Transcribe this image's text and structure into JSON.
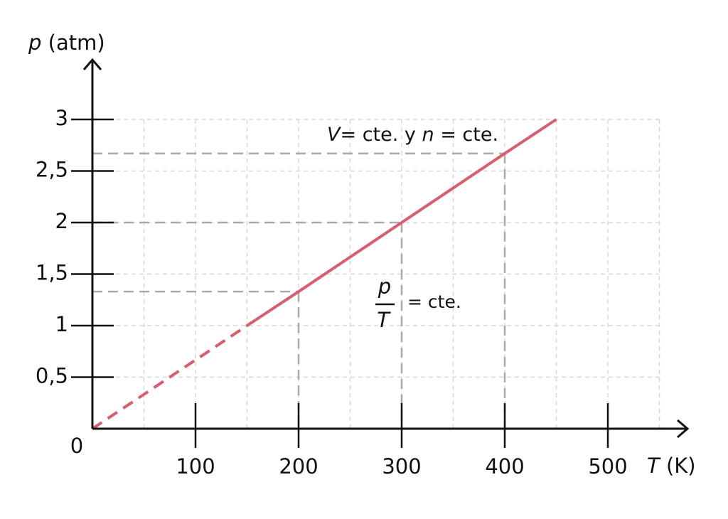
{
  "chart_data": {
    "type": "line",
    "ylabel_var": "p",
    "ylabel_unit": "(atm)",
    "xlabel_var": "T",
    "xlabel_unit": "(K)",
    "x": [
      0,
      150,
      200,
      300,
      400,
      450
    ],
    "series": [
      {
        "color": "#e05a6a",
        "dashed": true,
        "values": [
          0,
          1,
          null,
          null,
          null,
          null
        ]
      },
      {
        "color": "#e05a6a",
        "dashed": false,
        "values": [
          null,
          1,
          1.33,
          2,
          2.67,
          3
        ]
      }
    ],
    "guides": [
      {
        "x": 200,
        "y": 1.33
      },
      {
        "x": 300,
        "y": 2
      },
      {
        "x": 400,
        "y": 2.67
      }
    ],
    "xlim": [
      0,
      550
    ],
    "ylim": [
      0,
      3
    ],
    "xticks": [
      0,
      100,
      200,
      300,
      400,
      500
    ],
    "minor_xticks": [
      50,
      150,
      250,
      350,
      450,
      550
    ],
    "yticks": [
      {
        "value": 0.5,
        "label": "0,5"
      },
      1,
      {
        "value": 1.5,
        "label": "1,5"
      },
      2,
      {
        "value": 2.5,
        "label": "2,5"
      },
      3
    ],
    "grid": true,
    "annotation_top": {
      "v": "V",
      "eq1": "= cte. y",
      "n": "n",
      "eq2": "= cte."
    },
    "annotation_fraction": {
      "numerator": "p",
      "denominator": "T",
      "eq": "= cte."
    }
  }
}
